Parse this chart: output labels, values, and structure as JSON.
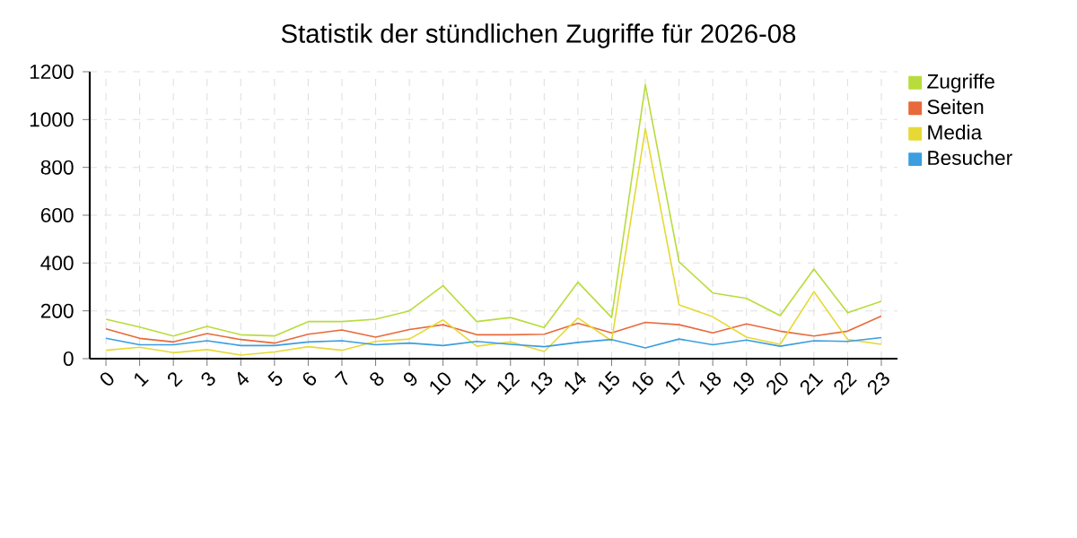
{
  "chart_data": {
    "type": "line",
    "title": "Statistik der stündlichen Zugriffe für 2026-08",
    "categories": [
      "0",
      "1",
      "2",
      "3",
      "4",
      "5",
      "6",
      "7",
      "8",
      "9",
      "10",
      "11",
      "12",
      "13",
      "14",
      "15",
      "16",
      "17",
      "18",
      "19",
      "20",
      "21",
      "22",
      "23"
    ],
    "series": [
      {
        "name": "Zugriffe",
        "color": "#b8dc3c",
        "values": [
          165,
          132,
          95,
          135,
          100,
          95,
          155,
          155,
          165,
          200,
          305,
          155,
          172,
          130,
          320,
          172,
          1145,
          405,
          275,
          252,
          180,
          375,
          192,
          240
        ]
      },
      {
        "name": "Seiten",
        "color": "#e8693a",
        "values": [
          125,
          85,
          70,
          105,
          80,
          65,
          102,
          120,
          90,
          122,
          142,
          100,
          100,
          102,
          148,
          108,
          152,
          142,
          108,
          145,
          115,
          95,
          115,
          178
        ]
      },
      {
        "name": "Media",
        "color": "#e6d935",
        "values": [
          35,
          48,
          25,
          38,
          15,
          28,
          50,
          35,
          72,
          82,
          162,
          52,
          70,
          30,
          170,
          75,
          962,
          225,
          175,
          90,
          60,
          280,
          80,
          60
        ]
      },
      {
        "name": "Besucher",
        "color": "#3a9ee0",
        "values": [
          85,
          58,
          58,
          75,
          55,
          55,
          70,
          75,
          58,
          65,
          55,
          72,
          60,
          50,
          68,
          80,
          45,
          82,
          58,
          78,
          52,
          75,
          72,
          88
        ]
      }
    ],
    "ylim": [
      0,
      1200
    ],
    "yticks": [
      0,
      200,
      400,
      600,
      800,
      1000,
      1200
    ],
    "grid": true,
    "legend": "top right",
    "marker": "none",
    "line_style": "solid"
  }
}
